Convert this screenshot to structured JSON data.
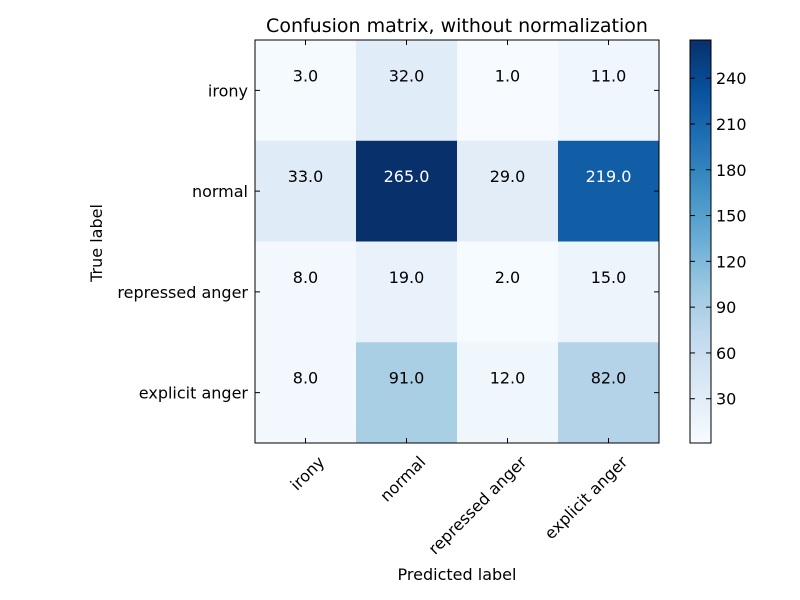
{
  "chart_data": {
    "type": "heatmap",
    "title": "Confusion matrix, without normalization",
    "xlabel": "Predicted label",
    "ylabel": "True label",
    "x_categories": [
      "irony",
      "normal",
      "repressed anger",
      "explicit anger"
    ],
    "y_categories": [
      "irony",
      "normal",
      "repressed anger",
      "explicit anger"
    ],
    "matrix": [
      [
        3.0,
        32.0,
        1.0,
        11.0
      ],
      [
        33.0,
        265.0,
        29.0,
        219.0
      ],
      [
        8.0,
        19.0,
        2.0,
        15.0
      ],
      [
        8.0,
        91.0,
        12.0,
        82.0
      ]
    ],
    "cell_labels": [
      [
        "3.0",
        "32.0",
        "1.0",
        "11.0"
      ],
      [
        "33.0",
        "265.0",
        "29.0",
        "219.0"
      ],
      [
        "8.0",
        "19.0",
        "2.0",
        "15.0"
      ],
      [
        "8.0",
        "91.0",
        "12.0",
        "82.0"
      ]
    ],
    "colormap": "Blues",
    "colorbar": {
      "range": [
        1,
        265
      ],
      "ticks": [
        30,
        60,
        90,
        120,
        150,
        180,
        210,
        240
      ],
      "tick_labels": [
        "30",
        "60",
        "90",
        "120",
        "150",
        "180",
        "210",
        "240"
      ]
    },
    "colors": {
      "low": "#f7fbff",
      "high": "#08306b",
      "text_light": "#ffffff",
      "text_dark": "#000000"
    }
  }
}
